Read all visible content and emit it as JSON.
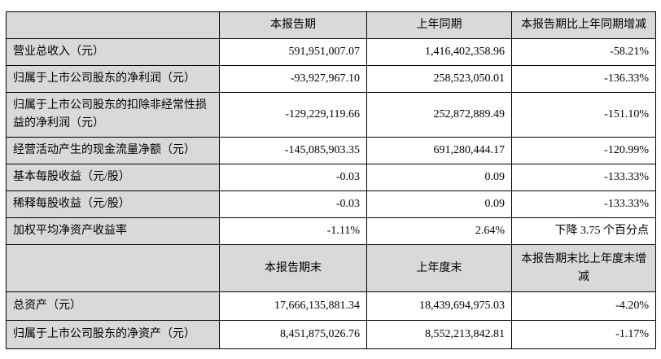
{
  "table": {
    "header_period": {
      "empty": "",
      "current": "本报告期",
      "prior": "上年同期",
      "change": "本报告期比上年同期增减"
    },
    "rows_period": [
      {
        "label": "营业总收入（元）",
        "current": "591,951,007.07",
        "prior": "1,416,402,358.96",
        "change": "-58.21%"
      },
      {
        "label": "归属于上市公司股东的净利润（元）",
        "current": "-93,927,967.10",
        "prior": "258,523,050.01",
        "change": "-136.33%"
      },
      {
        "label": "归属于上市公司股东的扣除非经常性损益的净利润（元）",
        "current": "-129,229,119.66",
        "prior": "252,872,889.49",
        "change": "-151.10%"
      },
      {
        "label": "经营活动产生的现金流量净额（元）",
        "current": "-145,085,903.35",
        "prior": "691,280,444.17",
        "change": "-120.99%"
      },
      {
        "label": "基本每股收益（元/股）",
        "current": "-0.03",
        "prior": "0.09",
        "change": "-133.33%"
      },
      {
        "label": "稀释每股收益（元/股）",
        "current": "-0.03",
        "prior": "0.09",
        "change": "-133.33%"
      },
      {
        "label": "加权平均净资产收益率",
        "current": "-1.11%",
        "prior": "2.64%",
        "change": "下降 3.75 个百分点"
      }
    ],
    "header_period_end": {
      "empty": "",
      "current": "本报告期末",
      "prior": "上年度末",
      "change": "本报告期末比上年度末增减"
    },
    "rows_period_end": [
      {
        "label": "总资产（元）",
        "current": "17,666,135,881.34",
        "prior": "18,439,694,975.03",
        "change": "-4.20%"
      },
      {
        "label": "归属于上市公司股东的净资产（元）",
        "current": "8,451,875,026.76",
        "prior": "8,552,213,842.81",
        "change": "-1.17%"
      }
    ]
  },
  "colors": {
    "header_bg": "#d9d9d9",
    "border": "#000000",
    "text": "#000000",
    "page_bg": "#ffffff"
  }
}
